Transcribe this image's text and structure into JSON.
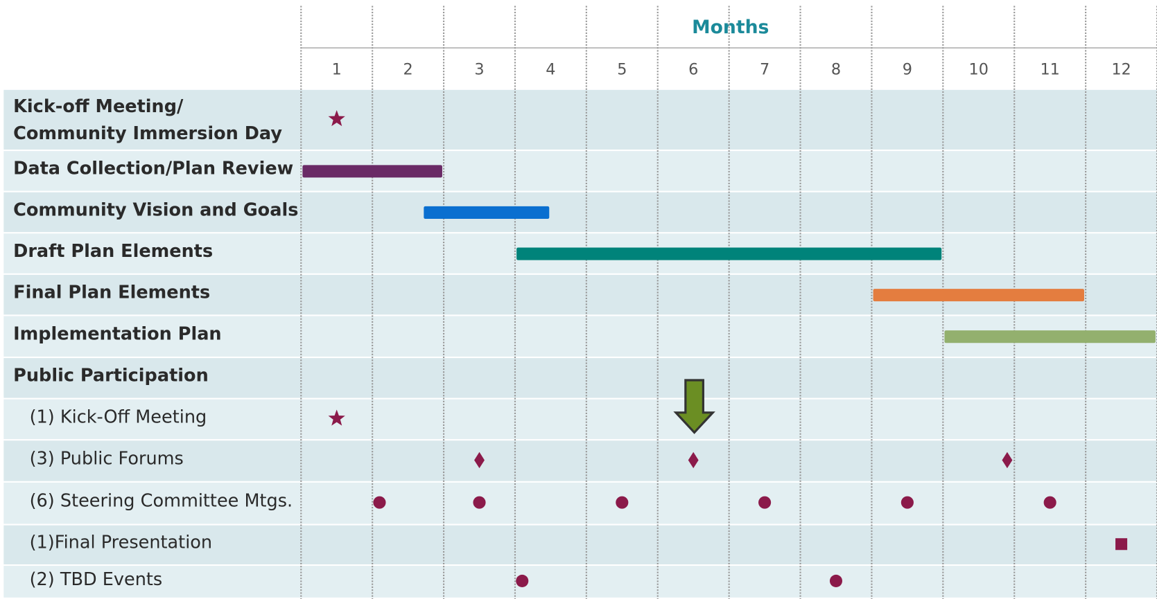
{
  "chart_data": {
    "type": "gantt",
    "axis_title": "Months",
    "xlim": [
      0.5,
      12.5
    ],
    "xticks": [
      1,
      2,
      3,
      4,
      5,
      6,
      7,
      8,
      9,
      10,
      11,
      12
    ],
    "rows": [
      {
        "label": [
          "Kick-off Meeting/",
          "Community Immersion Day"
        ],
        "marker": "star",
        "color": "#8b1a4a",
        "values": [
          1
        ]
      },
      {
        "label": "Data Collection/Plan Review",
        "start": 0.5,
        "end": 2.5,
        "color": "#6a2a66"
      },
      {
        "label": "Community Vision and Goals",
        "start": 2.2,
        "end": 4.0,
        "color": "#0a6fd0"
      },
      {
        "label": "Draft Plan Elements",
        "start": 3.5,
        "end": 9.5,
        "color": "#00837a"
      },
      {
        "label": "Final Plan Elements",
        "start": 8.5,
        "end": 11.5,
        "color": "#e47d3f"
      },
      {
        "label": "Implementation Plan",
        "start": 9.5,
        "end": 12.5,
        "color": "#93b06e"
      },
      {
        "label": "Public Participation"
      },
      {
        "label": "(1) Kick-Off Meeting",
        "sub": true,
        "marker": "star",
        "color": "#8b1a4a",
        "values": [
          1
        ]
      },
      {
        "label": "(3) Public Forums",
        "sub": true,
        "marker": "diamond",
        "color": "#8b1a4a",
        "values": [
          3,
          6,
          10.4
        ]
      },
      {
        "label": "(6) Steering Committee Mtgs.",
        "sub": true,
        "marker": "circle",
        "color": "#8b1a4a",
        "values": [
          1.6,
          3,
          5,
          7,
          9,
          11
        ]
      },
      {
        "label": "(1)Final Presentation",
        "sub": true,
        "marker": "square",
        "color": "#8b1a4a",
        "values": [
          12
        ]
      },
      {
        "label": "(2) TBD Events",
        "sub": true,
        "marker": "circle",
        "color": "#8b1a4a",
        "values": [
          3.6,
          8
        ]
      }
    ]
  }
}
